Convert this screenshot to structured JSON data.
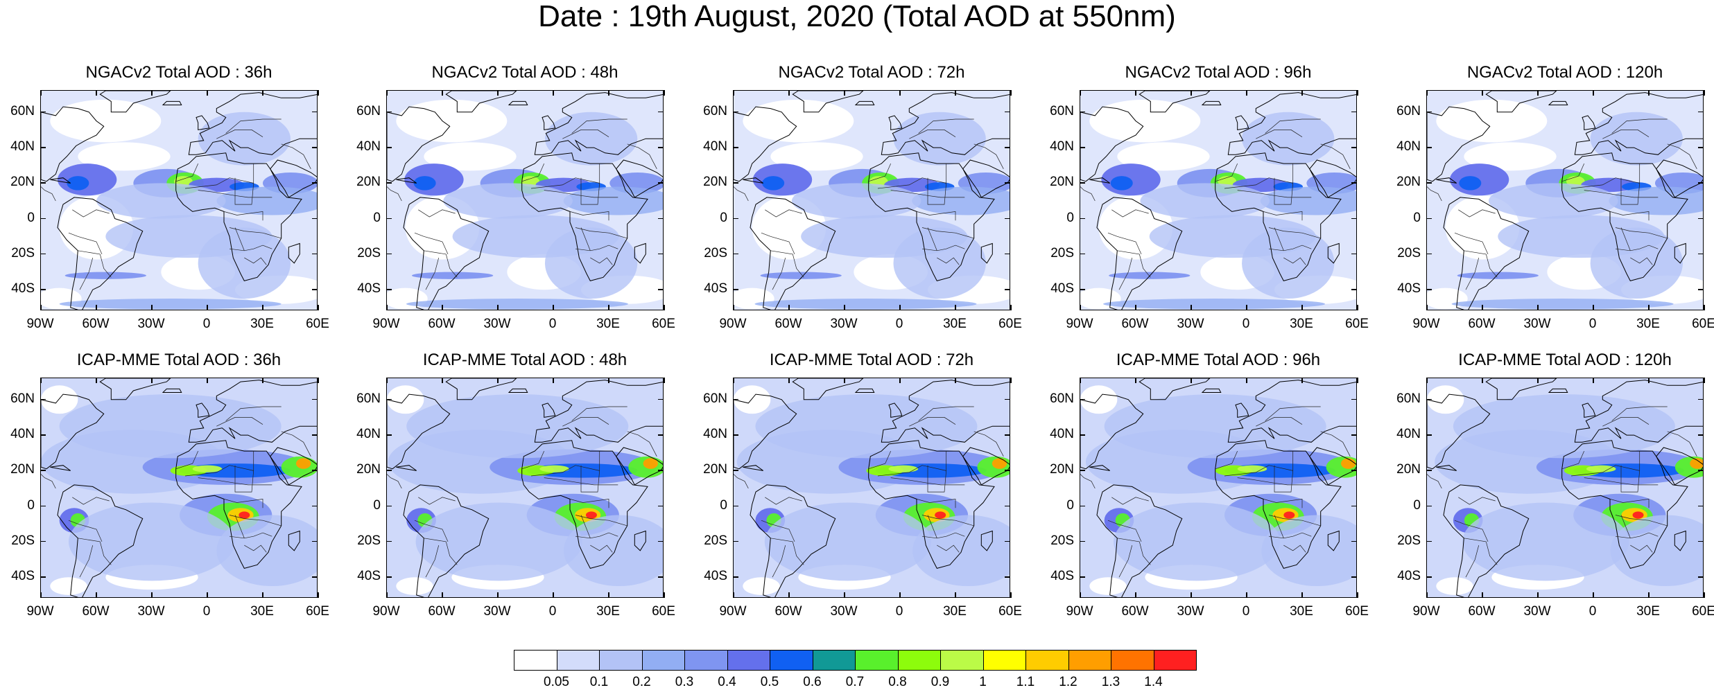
{
  "title": "Date : 19th August, 2020 (Total AOD at 550nm)",
  "panels": [
    {
      "title": "NGACv2 Total AOD : 36h",
      "model": "NGACv2",
      "lead": 36
    },
    {
      "title": "NGACv2 Total AOD : 48h",
      "model": "NGACv2",
      "lead": 48
    },
    {
      "title": "NGACv2 Total AOD : 72h",
      "model": "NGACv2",
      "lead": 72
    },
    {
      "title": "NGACv2 Total AOD : 96h",
      "model": "NGACv2",
      "lead": 96
    },
    {
      "title": "NGACv2 Total AOD : 120h",
      "model": "NGACv2",
      "lead": 120
    },
    {
      "title": "ICAP-MME Total AOD : 36h",
      "model": "ICAP-MME",
      "lead": 36
    },
    {
      "title": "ICAP-MME Total AOD : 48h",
      "model": "ICAP-MME",
      "lead": 48
    },
    {
      "title": "ICAP-MME Total AOD : 72h",
      "model": "ICAP-MME",
      "lead": 72
    },
    {
      "title": "ICAP-MME Total AOD : 96h",
      "model": "ICAP-MME",
      "lead": 96
    },
    {
      "title": "ICAP-MME Total AOD : 120h",
      "model": "ICAP-MME",
      "lead": 120
    }
  ],
  "lat_labels": [
    "60N",
    "40N",
    "20N",
    "0",
    "20S",
    "40S"
  ],
  "lat_values": [
    60,
    40,
    20,
    0,
    -20,
    -40
  ],
  "lon_labels": [
    "90W",
    "60W",
    "30W",
    "0",
    "30E",
    "60E"
  ],
  "lon_values": [
    -90,
    -60,
    -30,
    0,
    30,
    60
  ],
  "extent": {
    "lon": [
      -90,
      60
    ],
    "lat": [
      -52,
      72
    ]
  },
  "colorbar": {
    "labels": [
      "0.05",
      "0.1",
      "0.2",
      "0.3",
      "0.4",
      "0.5",
      "0.6",
      "0.7",
      "0.8",
      "0.9",
      "1",
      "1.1",
      "1.2",
      "1.3",
      "1.4"
    ],
    "colors": [
      "#ffffff",
      "#d3dcfb",
      "#b3c3f6",
      "#92aef3",
      "#7f95f1",
      "#6470ec",
      "#1060f2",
      "#119996",
      "#59f02c",
      "#8dfc0c",
      "#bbfb47",
      "#ffff00",
      "#ffcc00",
      "#ff9e00",
      "#ff7300",
      "#ff2020"
    ]
  }
}
